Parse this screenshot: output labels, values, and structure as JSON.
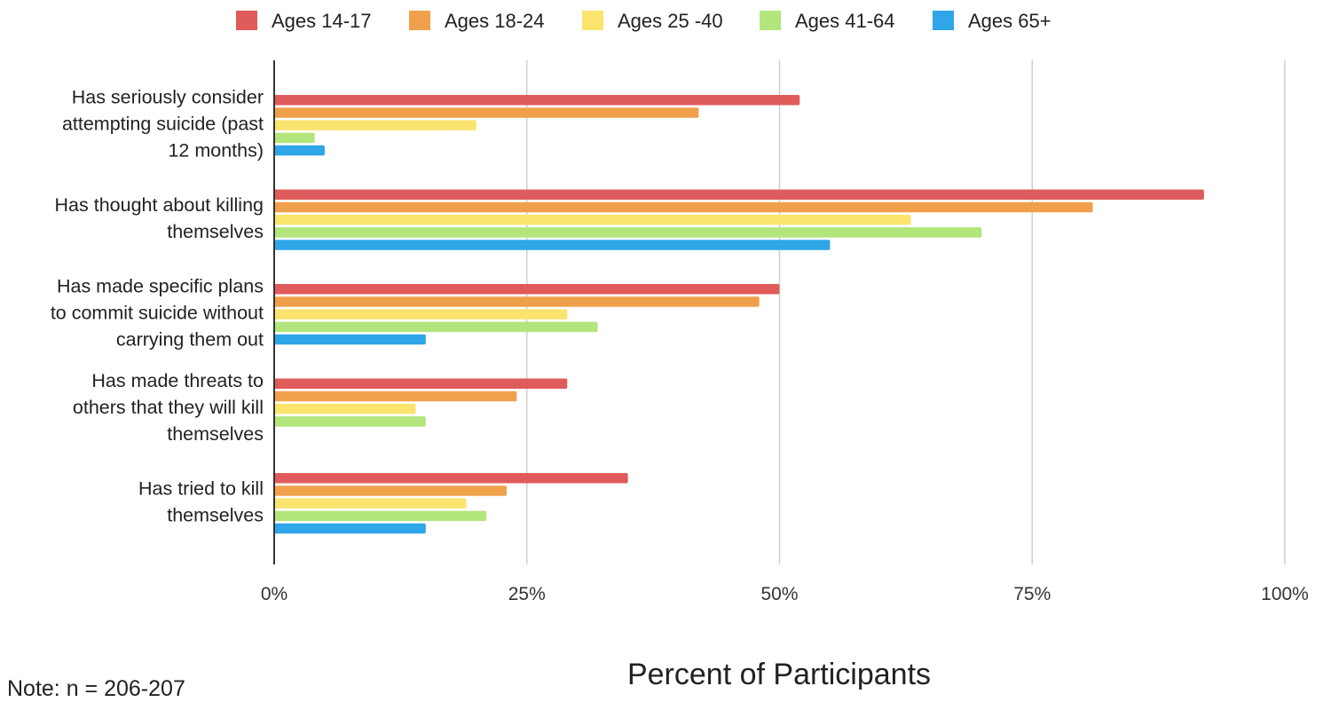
{
  "chart_data": {
    "type": "bar",
    "orientation": "horizontal",
    "title": "",
    "xlabel": "Percent of Participants",
    "ylabel": "",
    "xlim": [
      0,
      100
    ],
    "x_ticks": [
      0,
      25,
      50,
      75,
      100
    ],
    "x_tick_labels": [
      "0%",
      "25%",
      "50%",
      "75%",
      "100%"
    ],
    "grid": "vertical",
    "legend_position": "top",
    "categories": [
      [
        "Has seriously consider",
        "attempting suicide (past",
        "12 months)"
      ],
      [
        "Has thought about killing",
        "themselves"
      ],
      [
        "Has made specific plans",
        "to commit suicide without",
        "carrying them out"
      ],
      [
        "Has made threats to",
        "others that they will kill",
        "themselves"
      ],
      [
        "Has tried to kill",
        "themselves"
      ]
    ],
    "series": [
      {
        "name": "Ages 14-17",
        "color": "#e05b5b",
        "values": [
          52,
          92,
          50,
          29,
          35
        ]
      },
      {
        "name": "Ages 18-24",
        "color": "#f0a04b",
        "values": [
          42,
          81,
          48,
          24,
          23
        ]
      },
      {
        "name": "Ages 25 -40",
        "color": "#fbe46e",
        "values": [
          20,
          63,
          29,
          14,
          19
        ]
      },
      {
        "name": "Ages 41-64",
        "color": "#b2e57b",
        "values": [
          4,
          70,
          32,
          15,
          21
        ]
      },
      {
        "name": "Ages 65+",
        "color": "#2ea6e8",
        "values": [
          5,
          55,
          15,
          0,
          15
        ]
      }
    ]
  },
  "footer": {
    "note": "Note: n = 206-207"
  }
}
